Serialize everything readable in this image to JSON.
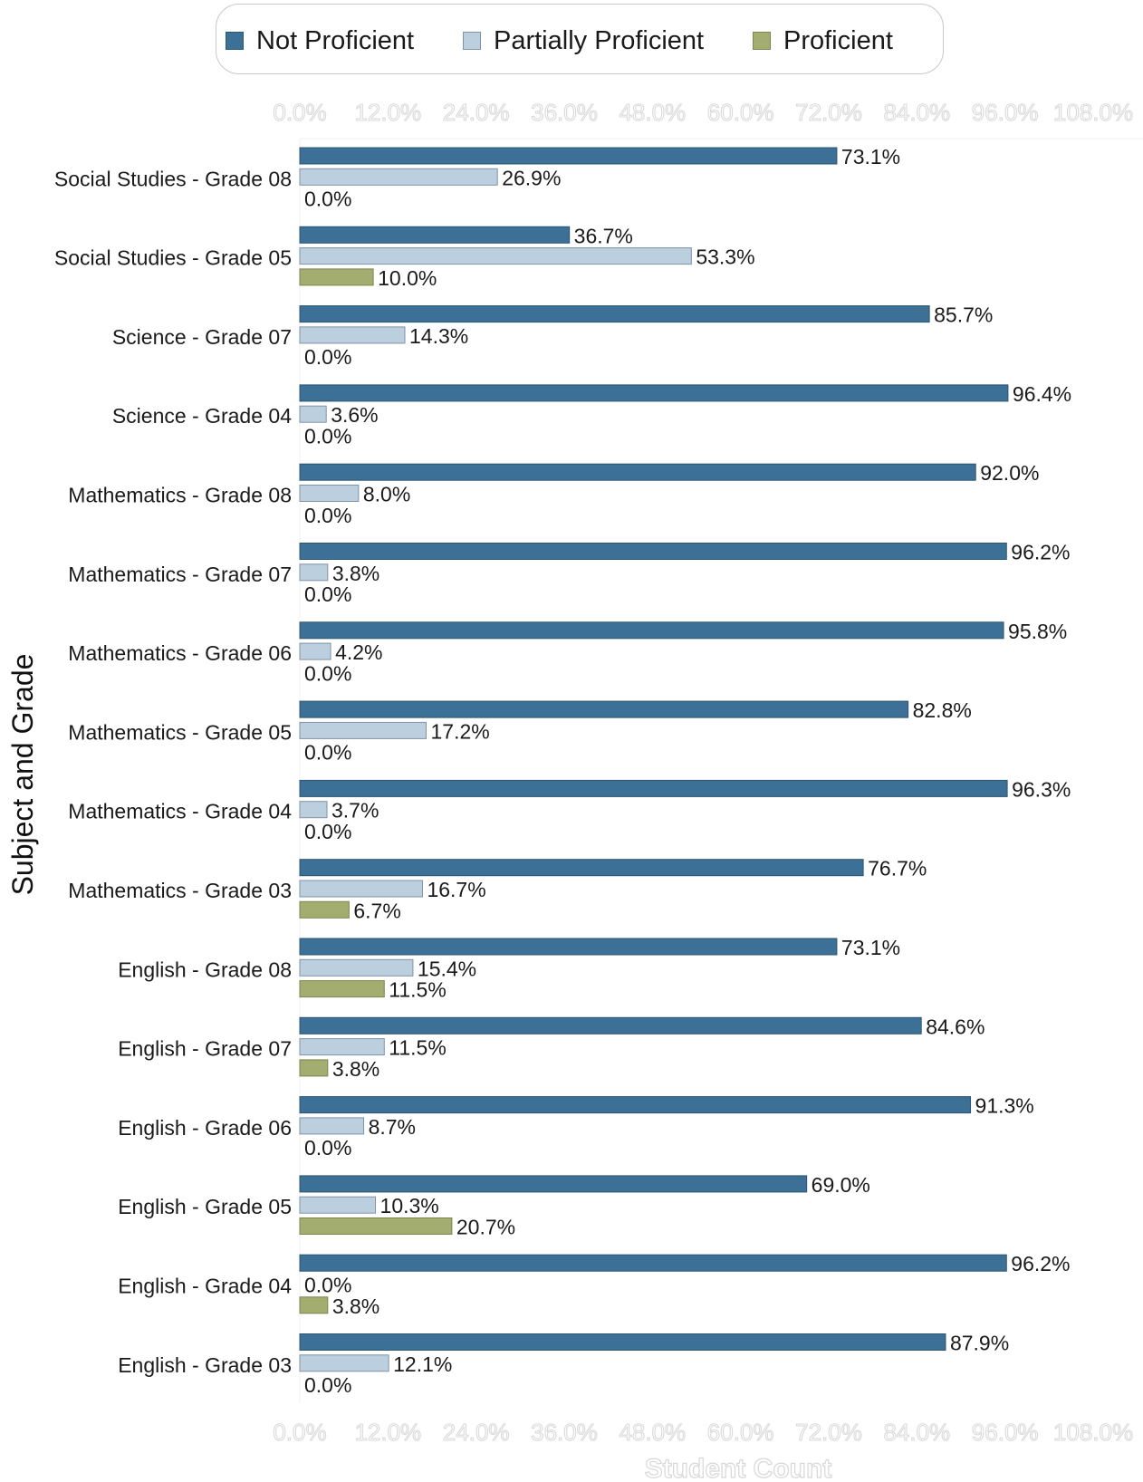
{
  "chart_data": {
    "type": "bar",
    "orientation": "horizontal",
    "xlabel": "Student Count",
    "ylabel": "Subject and Grade",
    "xlim": [
      0,
      108
    ],
    "xticks": [
      "0.0%",
      "12.0%",
      "24.0%",
      "36.0%",
      "48.0%",
      "60.0%",
      "72.0%",
      "84.0%",
      "96.0%",
      "108.0%"
    ],
    "legend_position": "top-center",
    "grid": false,
    "categories": [
      "Social Studies - Grade 08",
      "Social Studies - Grade 05",
      "Science - Grade 07",
      "Science - Grade 04",
      "Mathematics - Grade 08",
      "Mathematics - Grade 07",
      "Mathematics - Grade 06",
      "Mathematics - Grade 05",
      "Mathematics - Grade 04",
      "Mathematics - Grade 03",
      "English - Grade 08",
      "English - Grade 07",
      "English - Grade 06",
      "English - Grade 05",
      "English - Grade 04",
      "English - Grade 03"
    ],
    "series": [
      {
        "name": "Not Proficient",
        "color": "#3d7096",
        "values": [
          73.1,
          36.7,
          85.7,
          96.4,
          92.0,
          96.2,
          95.8,
          82.8,
          96.3,
          76.7,
          73.1,
          84.6,
          91.3,
          69.0,
          96.2,
          87.9
        ],
        "labels": [
          "73.1%",
          "36.7%",
          "85.7%",
          "96.4%",
          "92.0%",
          "96.2%",
          "95.8%",
          "82.8%",
          "96.3%",
          "76.7%",
          "73.1%",
          "84.6%",
          "91.3%",
          "69.0%",
          "96.2%",
          "87.9%"
        ]
      },
      {
        "name": "Partially Proficient",
        "color": "#bccfdf",
        "values": [
          26.9,
          53.3,
          14.3,
          3.6,
          8.0,
          3.8,
          4.2,
          17.2,
          3.7,
          16.7,
          15.4,
          11.5,
          8.7,
          10.3,
          0.0,
          12.1
        ],
        "labels": [
          "26.9%",
          "53.3%",
          "14.3%",
          "3.6%",
          "8.0%",
          "3.8%",
          "4.2%",
          "17.2%",
          "3.7%",
          "16.7%",
          "15.4%",
          "11.5%",
          "8.7%",
          "10.3%",
          "0.0%",
          "12.1%"
        ]
      },
      {
        "name": "Proficient",
        "color": "#a2ad6f",
        "values": [
          0.0,
          10.0,
          0.0,
          0.0,
          0.0,
          0.0,
          0.0,
          0.0,
          0.0,
          6.7,
          11.5,
          3.8,
          0.0,
          20.7,
          3.8,
          0.0
        ],
        "labels": [
          "0.0%",
          "10.0%",
          "0.0%",
          "0.0%",
          "0.0%",
          "0.0%",
          "0.0%",
          "0.0%",
          "0.0%",
          "6.7%",
          "11.5%",
          "3.8%",
          "0.0%",
          "20.7%",
          "3.8%",
          "0.0%"
        ]
      }
    ]
  }
}
